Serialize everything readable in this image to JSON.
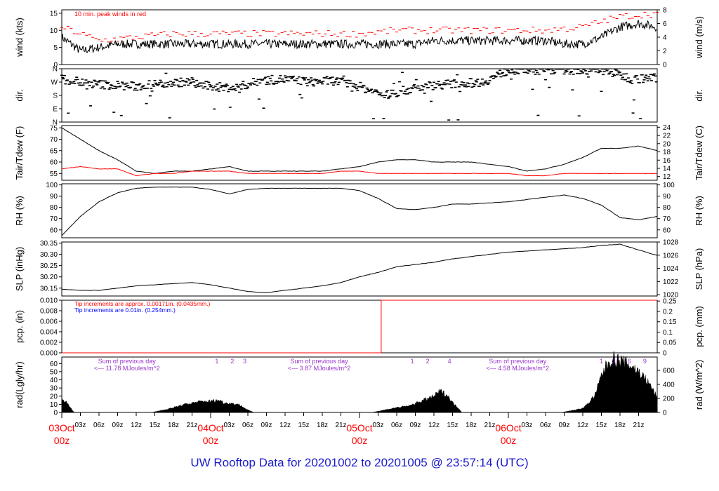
{
  "footer": {
    "title": "UW Rooftop Data for 20201002  to  20201005 @ 23:57:14  (UTC)"
  },
  "colors": {
    "black": "#000000",
    "red": "#ff0000",
    "blue": "#0000ff",
    "purple": "#9933cc",
    "footer": "#1a1acc"
  },
  "chart_data": [
    {
      "id": "wind",
      "type": "line",
      "ylabel": "wind (kts)",
      "ylabel_right": "wind (m/s)",
      "ylim": [
        0,
        16
      ],
      "yticks": [
        0,
        5,
        10,
        15
      ],
      "ylim_right": [
        0,
        8
      ],
      "yticks_right": [
        0,
        2,
        4,
        6,
        8
      ],
      "annotation": "10 min. peak winds in red",
      "series": [
        {
          "name": "wind",
          "color": "#000000",
          "x_hours": [
            0,
            3,
            6,
            9,
            12,
            15,
            18,
            21,
            24,
            27,
            30,
            33,
            36,
            39,
            42,
            45,
            48,
            51,
            54,
            57,
            60,
            63,
            66,
            69,
            72,
            75,
            78,
            81,
            84,
            87,
            90,
            93,
            96
          ],
          "values": [
            8,
            4,
            5,
            6,
            6,
            6,
            6,
            6,
            6,
            6,
            6,
            6,
            6,
            6,
            6,
            6,
            6,
            6,
            6,
            6,
            7,
            7,
            7,
            7,
            7,
            7,
            7,
            6,
            6,
            8,
            11,
            12,
            11
          ]
        },
        {
          "name": "10 min. peak winds",
          "color": "#ff0000",
          "x_hours": [
            0,
            6,
            12,
            18,
            24,
            30,
            36,
            42,
            48,
            54,
            60,
            66,
            72,
            78,
            84,
            90,
            96
          ],
          "values": [
            11,
            7,
            8,
            9,
            9,
            9,
            9,
            9,
            9,
            10,
            10,
            10,
            10,
            10,
            11,
            14,
            15
          ]
        }
      ]
    },
    {
      "id": "dir",
      "type": "scatter",
      "ylabel": "dir.",
      "ylabel_right": "dir.",
      "ytick_labels": [
        "N",
        "E",
        "S",
        "W",
        "N"
      ],
      "yticks": [
        0,
        90,
        180,
        270,
        360
      ],
      "ylim": [
        0,
        360
      ],
      "series": [
        {
          "name": "direction",
          "x_hours": [
            0,
            4,
            8,
            12,
            16,
            20,
            24,
            28,
            32,
            36,
            40,
            44,
            48,
            52,
            56,
            60,
            64,
            68,
            72,
            76,
            80,
            84,
            88,
            92,
            96
          ],
          "values": [
            290,
            260,
            250,
            240,
            260,
            270,
            240,
            230,
            280,
            290,
            270,
            280,
            240,
            180,
            220,
            250,
            260,
            270,
            350,
            350,
            355,
            350,
            345,
            290,
            300
          ]
        }
      ]
    },
    {
      "id": "temp",
      "type": "line",
      "ylabel": "Tair/Tdew (F)",
      "ylabel_right": "Tair/Tdew (C)",
      "ylim": [
        52,
        76
      ],
      "yticks": [
        55,
        60,
        65,
        70,
        75
      ],
      "ylim_right": [
        11.1,
        24.4
      ],
      "yticks_right": [
        12,
        14,
        16,
        18,
        20,
        22,
        24
      ],
      "series": [
        {
          "name": "Tair",
          "color": "#000000",
          "x_hours": [
            0,
            3,
            6,
            9,
            12,
            15,
            18,
            21,
            24,
            27,
            30,
            33,
            36,
            39,
            42,
            45,
            48,
            51,
            54,
            57,
            60,
            63,
            66,
            69,
            72,
            75,
            78,
            81,
            84,
            87,
            90,
            93,
            96
          ],
          "values": [
            75,
            70,
            65,
            61,
            56,
            55,
            56,
            56,
            57,
            58,
            56,
            56,
            56,
            56,
            56,
            57,
            58,
            60,
            61,
            61,
            60,
            60,
            60,
            59,
            58,
            56,
            57,
            59,
            62,
            66,
            66,
            67,
            65
          ]
        },
        {
          "name": "Tdew",
          "color": "#ff0000",
          "x_hours": [
            0,
            3,
            6,
            9,
            12,
            15,
            18,
            21,
            24,
            27,
            30,
            33,
            36,
            39,
            42,
            45,
            48,
            51,
            54,
            57,
            60,
            63,
            66,
            69,
            72,
            75,
            78,
            81,
            84,
            87,
            90,
            93,
            96
          ],
          "values": [
            57,
            58,
            57,
            57,
            54,
            55,
            55,
            56,
            56,
            56,
            55,
            55,
            55,
            55,
            55,
            56,
            56,
            55,
            55,
            55,
            55,
            55,
            55,
            55,
            55,
            54,
            54,
            55,
            55,
            55,
            55,
            55,
            55
          ]
        }
      ]
    },
    {
      "id": "rh",
      "type": "line",
      "ylabel": "RH (%)",
      "ylabel_right": "RH (%)",
      "ylim": [
        53,
        101
      ],
      "yticks": [
        60,
        70,
        80,
        90,
        100
      ],
      "yticks_right": [
        60,
        70,
        80,
        90,
        100
      ],
      "series": [
        {
          "name": "RH",
          "color": "#000000",
          "x_hours": [
            0,
            3,
            6,
            9,
            12,
            15,
            18,
            21,
            24,
            27,
            30,
            33,
            36,
            39,
            42,
            45,
            48,
            51,
            54,
            57,
            60,
            63,
            66,
            69,
            72,
            75,
            78,
            81,
            84,
            87,
            90,
            93,
            96
          ],
          "values": [
            55,
            72,
            85,
            93,
            97,
            98,
            98,
            98,
            96,
            92,
            96,
            97,
            97,
            97,
            97,
            97,
            95,
            88,
            79,
            78,
            80,
            83,
            83,
            84,
            85,
            87,
            89,
            91,
            88,
            82,
            71,
            69,
            72
          ]
        }
      ]
    },
    {
      "id": "slp",
      "type": "line",
      "ylabel": "SLP (inHg)",
      "ylabel_right": "SLP (hPa)",
      "ylim": [
        30.115,
        30.355
      ],
      "yticks": [
        30.15,
        30.2,
        30.25,
        30.3,
        30.35
      ],
      "ytick_labels": [
        "30.15",
        "30.20",
        "30.25",
        "30.30",
        "30.35"
      ],
      "ylim_right": [
        1019.8,
        1028.0
      ],
      "yticks_right": [
        1020,
        1022,
        1024,
        1026,
        1028
      ],
      "series": [
        {
          "name": "SLP",
          "color": "#000000",
          "x_hours": [
            0,
            3,
            6,
            9,
            12,
            15,
            18,
            21,
            24,
            27,
            30,
            33,
            36,
            39,
            42,
            45,
            48,
            51,
            54,
            57,
            60,
            63,
            66,
            69,
            72,
            75,
            78,
            81,
            84,
            87,
            90,
            93,
            96
          ],
          "values": [
            30.145,
            30.14,
            30.14,
            30.15,
            30.16,
            30.165,
            30.17,
            30.175,
            30.165,
            30.15,
            30.135,
            30.13,
            30.14,
            30.15,
            30.16,
            30.175,
            30.2,
            30.22,
            30.245,
            30.255,
            30.265,
            30.28,
            30.29,
            30.3,
            30.31,
            30.315,
            30.32,
            30.325,
            30.33,
            30.34,
            30.345,
            30.32,
            30.295
          ]
        }
      ]
    },
    {
      "id": "pcp",
      "type": "line",
      "ylabel": "pcp. (in)",
      "ylabel_right": "pcp. (mm)",
      "ylim": [
        0,
        0.01
      ],
      "yticks": [
        0,
        0.002,
        0.004,
        0.006,
        0.008,
        0.01
      ],
      "ytick_labels": [
        "0.000",
        "0.002",
        "0.004",
        "0.006",
        "0.008",
        "0.010"
      ],
      "ylim_right": [
        0,
        0.254
      ],
      "yticks_right": [
        0,
        0.05,
        0.1,
        0.15,
        0.2,
        0.25
      ],
      "ytick_labels_right": [
        "0",
        "0.05",
        "0.1",
        "0.15",
        "0.2",
        "0.25"
      ],
      "notes": [
        {
          "text": "Tip increments are approx. 0.00171in. (0.0435mm.)",
          "color": "#ff0000"
        },
        {
          "text": "Tip increments are 0.01in. (0.254mm.)",
          "color": "#0000ff"
        }
      ],
      "series": [
        {
          "name": "pcp",
          "color": "#ff0000",
          "x_hours": [
            0,
            51.5,
            51.5,
            96
          ],
          "values": [
            0,
            0,
            0.01,
            0.01
          ]
        }
      ]
    },
    {
      "id": "rad",
      "type": "area",
      "ylabel": "rad(Lgly/hr)",
      "ylabel_right": "rad (W/m^2)",
      "ylim": [
        0,
        68
      ],
      "yticks": [
        0,
        10,
        20,
        30,
        40,
        50,
        60
      ],
      "ylim_right": [
        0,
        790
      ],
      "yticks_right": [
        0,
        200,
        400,
        600
      ],
      "day_notes": [
        {
          "x_hours": 10.5,
          "line1": "Sum of previous day",
          "line2": "<--- 11.78 MJoules/m^2"
        },
        {
          "x_hours": 41.5,
          "line1": "Sum of previous day",
          "line2": "<--- 3.87 MJoules/m^2"
        },
        {
          "x_hours": 73.5,
          "line1": "Sum of previous day",
          "line2": "<--- 4.58 MJoules/m^2"
        }
      ],
      "marker_labels": [
        {
          "x_hours": 25,
          "text": "1"
        },
        {
          "x_hours": 27.5,
          "text": "2"
        },
        {
          "x_hours": 29.5,
          "text": "3"
        },
        {
          "x_hours": 56.5,
          "text": "1"
        },
        {
          "x_hours": 59,
          "text": "2"
        },
        {
          "x_hours": 62.5,
          "text": "4"
        },
        {
          "x_hours": 87,
          "text": "1"
        },
        {
          "x_hours": 89,
          "text": "3"
        },
        {
          "x_hours": 91.5,
          "text": "6"
        },
        {
          "x_hours": 94,
          "text": "9"
        }
      ],
      "series": [
        {
          "name": "rad",
          "color": "#000000",
          "x_hours": [
            0,
            1,
            2,
            3,
            14.5,
            17,
            20,
            22,
            24,
            25.5,
            26,
            28.5,
            30,
            31,
            50,
            52,
            54,
            56,
            58,
            60,
            61,
            62,
            62.5,
            63,
            64,
            64.5,
            80.5,
            82,
            84,
            85,
            86,
            86.5,
            87,
            88,
            89,
            90,
            91,
            92,
            93,
            94,
            95,
            96
          ],
          "values": [
            18,
            10,
            0,
            0,
            0,
            4,
            10,
            13,
            14,
            15,
            12,
            10,
            3,
            0,
            0,
            3,
            6,
            8,
            14,
            20,
            26,
            22,
            18,
            12,
            5,
            0,
            0,
            2,
            5,
            12,
            22,
            33,
            45,
            60,
            66,
            63,
            60,
            56,
            50,
            42,
            32,
            18
          ]
        }
      ]
    }
  ],
  "xaxis": {
    "range_hours": [
      0,
      96
    ],
    "hour_labels": [
      {
        "x_hours": 3,
        "text": "03z"
      },
      {
        "x_hours": 6,
        "text": "06z"
      },
      {
        "x_hours": 9,
        "text": "09z"
      },
      {
        "x_hours": 12,
        "text": "12z"
      },
      {
        "x_hours": 15,
        "text": "15z"
      },
      {
        "x_hours": 18,
        "text": "18z"
      },
      {
        "x_hours": 21,
        "text": "21z"
      },
      {
        "x_hours": 27,
        "text": "03z"
      },
      {
        "x_hours": 30,
        "text": "06z"
      },
      {
        "x_hours": 33,
        "text": "09z"
      },
      {
        "x_hours": 36,
        "text": "12z"
      },
      {
        "x_hours": 39,
        "text": "15z"
      },
      {
        "x_hours": 42,
        "text": "18z"
      },
      {
        "x_hours": 45,
        "text": "21z"
      },
      {
        "x_hours": 51,
        "text": "03z"
      },
      {
        "x_hours": 54,
        "text": "06z"
      },
      {
        "x_hours": 57,
        "text": "09z"
      },
      {
        "x_hours": 60,
        "text": "12z"
      },
      {
        "x_hours": 63,
        "text": "15z"
      },
      {
        "x_hours": 66,
        "text": "18z"
      },
      {
        "x_hours": 69,
        "text": "21z"
      },
      {
        "x_hours": 75,
        "text": "03z"
      },
      {
        "x_hours": 78,
        "text": "06z"
      },
      {
        "x_hours": 81,
        "text": "09z"
      },
      {
        "x_hours": 84,
        "text": "12z"
      },
      {
        "x_hours": 87,
        "text": "15z"
      },
      {
        "x_hours": 90,
        "text": "18z"
      },
      {
        "x_hours": 93,
        "text": "21z"
      }
    ],
    "day_labels": [
      {
        "x_hours": 0,
        "date": "03Oct",
        "time": "00z"
      },
      {
        "x_hours": 24,
        "date": "04Oct",
        "time": "00z"
      },
      {
        "x_hours": 48,
        "date": "05Oct",
        "time": "00z"
      },
      {
        "x_hours": 72,
        "date": "06Oct",
        "time": "00z"
      }
    ]
  }
}
